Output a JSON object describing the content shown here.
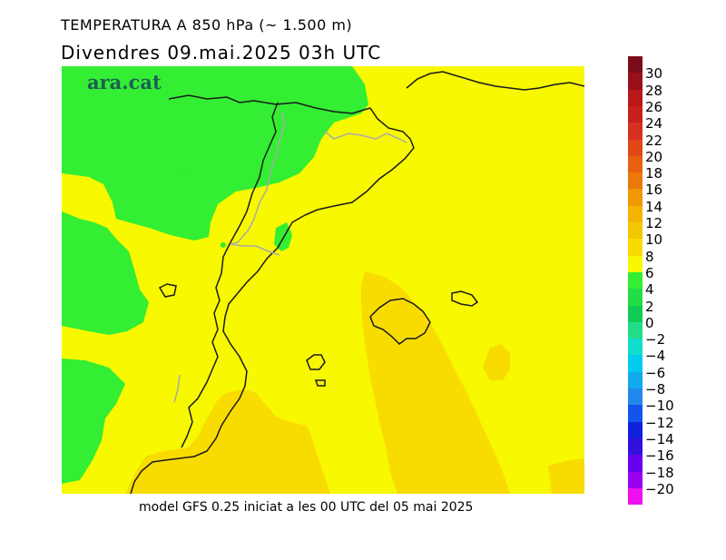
{
  "header": {
    "title": "TEMPERATURA A 850 hPa (~ 1.500 m)",
    "subtitle": "Divendres  09.mai.2025 03h UTC"
  },
  "map": {
    "logo_text": "ara.cat",
    "colors": {
      "green": "#33ee33",
      "yellow": "#f8f800",
      "gold": "#f8dc00",
      "coast": "#1a1a1a",
      "border": "#aaaaaa"
    }
  },
  "footer": {
    "text": "model GFS 0.25 iniciat a les 00 UTC del 05 mai 2025"
  },
  "legend": {
    "labels": [
      "30",
      "28",
      "26",
      "24",
      "22",
      "20",
      "18",
      "16",
      "14",
      "12",
      "10",
      "8",
      "6",
      "4",
      "2",
      "0",
      "−2",
      "−4",
      "−6",
      "−8",
      "−10",
      "−12",
      "−14",
      "−16",
      "−18",
      "−20"
    ],
    "colors": [
      "#7a0c1c",
      "#9a1018",
      "#b81818",
      "#c8201e",
      "#d83020",
      "#e04818",
      "#e86010",
      "#ec7808",
      "#f09800",
      "#f4b400",
      "#f4c800",
      "#f8dc00",
      "#f8f800",
      "#33ee33",
      "#22dd44",
      "#10cc55",
      "#22dd88",
      "#11ddcc",
      "#00ccee",
      "#11aaee",
      "#2288ee",
      "#1155ee",
      "#1122dd",
      "#3311dd",
      "#6600ee",
      "#9900ee",
      "#ee11ee"
    ]
  }
}
